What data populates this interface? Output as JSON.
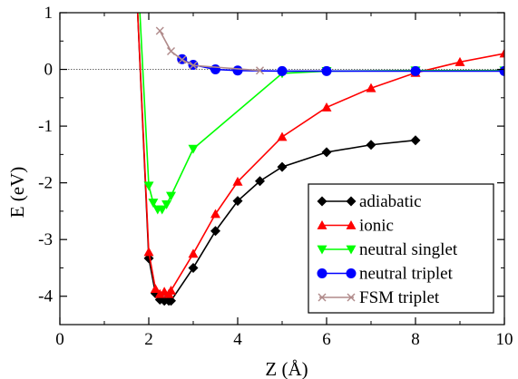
{
  "chart_data": {
    "type": "line",
    "xlabel": "Z (Å)",
    "ylabel": "E (eV)",
    "xlim": [
      0,
      10
    ],
    "ylim": [
      -4.5,
      1
    ],
    "xticks": [
      0,
      2,
      4,
      6,
      8,
      10
    ],
    "yticks": [
      1,
      0,
      -1,
      -2,
      -3,
      -4
    ],
    "xtick_labels": [
      "0",
      "2",
      "4",
      "6",
      "8",
      "10"
    ],
    "ytick_labels": [
      "1",
      "0",
      "-1",
      "-2",
      "-3",
      "-4"
    ],
    "zero_line": true,
    "legend_position": "bottom-right",
    "series": [
      {
        "name": "adiabatic",
        "color": "#000000",
        "marker": "diamond",
        "x": [
          1.75,
          2.0,
          2.15,
          2.25,
          2.35,
          2.45,
          2.5,
          3.0,
          3.5,
          4.0,
          4.5,
          5.0,
          6.0,
          7.0,
          8.0
        ],
        "y": [
          1.0,
          -3.33,
          -3.95,
          -4.06,
          -4.08,
          -4.08,
          -4.08,
          -3.5,
          -2.85,
          -2.32,
          -1.97,
          -1.72,
          -1.46,
          -1.33,
          -1.25
        ]
      },
      {
        "name": "ionic",
        "color": "#ff0000",
        "marker": "triangle-up",
        "x": [
          1.75,
          2.0,
          2.15,
          2.25,
          2.35,
          2.45,
          2.5,
          3.0,
          3.5,
          4.0,
          5.0,
          6.0,
          7.0,
          8.0,
          9.0,
          10.0
        ],
        "y": [
          1.0,
          -3.22,
          -3.87,
          -3.96,
          -3.92,
          -3.96,
          -3.9,
          -3.25,
          -2.55,
          -1.98,
          -1.19,
          -0.67,
          -0.33,
          -0.06,
          0.13,
          0.28
        ]
      },
      {
        "name": "neutral singlet",
        "color": "#00ff00",
        "marker": "triangle-down",
        "x": [
          1.8,
          2.0,
          2.1,
          2.2,
          2.3,
          2.4,
          2.5,
          3.0,
          5.0,
          6.0,
          8.0,
          10.0
        ],
        "y": [
          1.0,
          -2.05,
          -2.35,
          -2.47,
          -2.47,
          -2.38,
          -2.23,
          -1.4,
          -0.07,
          -0.03,
          -0.02,
          -0.02
        ]
      },
      {
        "name": "neutral triplet",
        "color": "#0000ff",
        "marker": "circle",
        "x": [
          2.75,
          3.0,
          3.5,
          4.0,
          5.0,
          6.0,
          8.0,
          10.0
        ],
        "y": [
          0.18,
          0.08,
          0.0,
          -0.02,
          -0.03,
          -0.03,
          -0.03,
          -0.03
        ]
      },
      {
        "name": "FSM triplet",
        "color": "#b08a8a",
        "marker": "x",
        "x": [
          2.25,
          2.5,
          2.75,
          3.0,
          4.5
        ],
        "y": [
          0.68,
          0.32,
          0.17,
          0.07,
          -0.02
        ]
      }
    ]
  }
}
